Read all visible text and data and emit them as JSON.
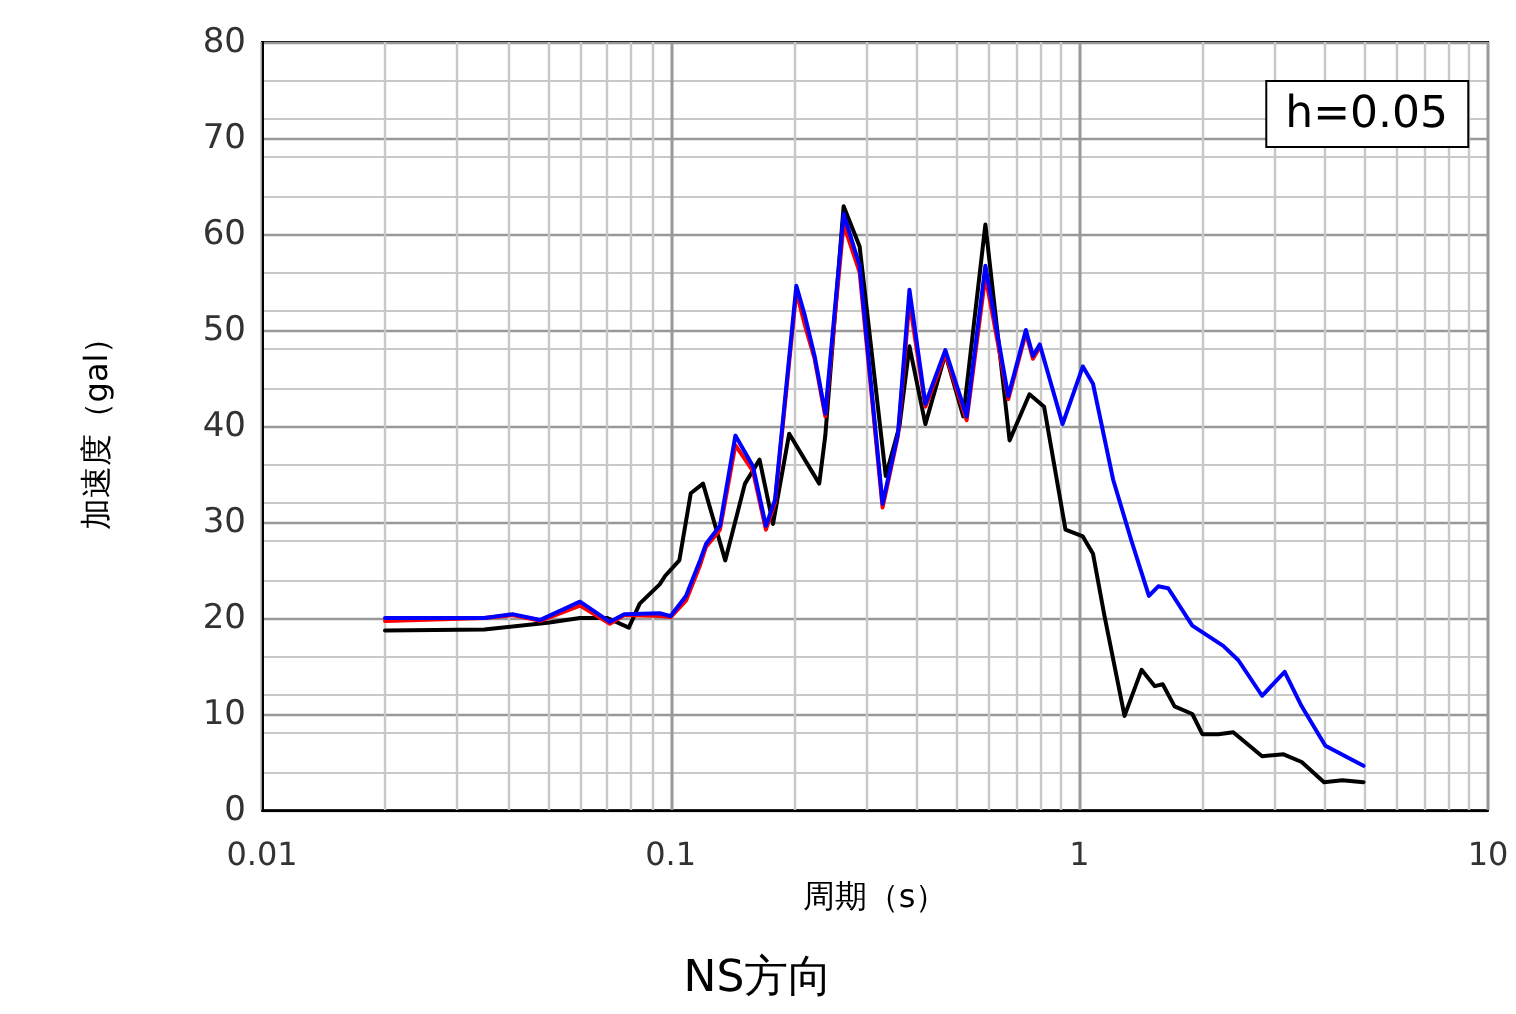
{
  "chart_data": {
    "type": "line",
    "title": "NS方向",
    "xlabel": "周期（s）",
    "ylabel": "加速度（gal）",
    "annotations": [
      "h=0.05"
    ],
    "log": "x",
    "xlim": [
      0.01,
      10
    ],
    "xticks": [
      0.01,
      0.1,
      1,
      10
    ],
    "ylim": [
      0,
      80
    ],
    "yticks": [
      0,
      10,
      20,
      30,
      40,
      50,
      60,
      70,
      80
    ],
    "grid": true,
    "marker": "none",
    "line_style": "solid",
    "series": [
      {
        "color": "#000000",
        "x": [
          0.02,
          0.035,
          0.05,
          0.06,
          0.07,
          0.079,
          0.084,
          0.094,
          0.097,
          0.105,
          0.112,
          0.12,
          0.136,
          0.152,
          0.165,
          0.178,
          0.195,
          0.231,
          0.239,
          0.265,
          0.29,
          0.336,
          0.363,
          0.384,
          0.42,
          0.47,
          0.52,
          0.589,
          0.675,
          0.755,
          0.82,
          0.925,
          1.02,
          1.08,
          1.15,
          1.29,
          1.42,
          1.53,
          1.6,
          1.71,
          1.89,
          2.0,
          2.19,
          2.38,
          2.8,
          3.16,
          3.5,
          3.97,
          4.4,
          4.96
        ],
        "values": [
          18.7,
          18.8,
          19.5,
          20,
          20,
          19,
          21.5,
          23.5,
          24.4,
          26,
          33,
          34,
          26,
          34,
          36.5,
          29.8,
          39.2,
          34,
          39,
          62.9,
          58.7,
          34.8,
          40,
          48.3,
          40.2,
          47.5,
          41,
          61,
          38.5,
          43.3,
          42,
          29.2,
          28.5,
          26.7,
          20.4,
          9.8,
          14.6,
          12.9,
          13.1,
          10.8,
          10,
          7.9,
          7.9,
          8.1,
          5.6,
          5.8,
          5,
          2.9,
          3.1,
          2.9
        ]
      },
      {
        "color": "#ff0000",
        "x": [
          0.02,
          0.035,
          0.041,
          0.048,
          0.06,
          0.071,
          0.077,
          0.094,
          0.1,
          0.109,
          0.118,
          0.122,
          0.132,
          0.144,
          0.159,
          0.171,
          0.18,
          0.203,
          0.213,
          0.225,
          0.239,
          0.265,
          0.29,
          0.33,
          0.36,
          0.384,
          0.42,
          0.47,
          0.53,
          0.589,
          0.67,
          0.74,
          0.77,
          0.8
        ],
        "values": [
          19.7,
          20,
          20.3,
          19.7,
          21.3,
          19.4,
          20.3,
          20.2,
          20.1,
          21.8,
          25.5,
          27.4,
          29.2,
          38,
          35.3,
          29.2,
          32,
          54,
          50.5,
          47,
          41,
          61,
          56,
          31.5,
          39,
          53,
          42,
          47.5,
          40.6,
          55.6,
          42.8,
          49.7,
          47,
          48.2
        ]
      },
      {
        "color": "#0000ff",
        "x": [
          0.02,
          0.035,
          0.041,
          0.048,
          0.06,
          0.071,
          0.077,
          0.094,
          0.1,
          0.109,
          0.118,
          0.122,
          0.132,
          0.144,
          0.159,
          0.171,
          0.18,
          0.203,
          0.213,
          0.225,
          0.239,
          0.265,
          0.29,
          0.33,
          0.36,
          0.384,
          0.42,
          0.47,
          0.53,
          0.589,
          0.67,
          0.74,
          0.77,
          0.8,
          0.91,
          1.02,
          1.08,
          1.21,
          1.34,
          1.48,
          1.56,
          1.65,
          1.89,
          2.25,
          2.45,
          2.8,
          3.18,
          3.5,
          4.0,
          4.96
        ],
        "values": [
          20,
          20,
          20.4,
          19.8,
          21.7,
          19.6,
          20.4,
          20.5,
          20.2,
          22.3,
          26,
          27.7,
          29.6,
          39,
          35.8,
          29.6,
          32.3,
          54.6,
          51.5,
          47.3,
          41.3,
          62.1,
          56.7,
          31.9,
          39.2,
          54.2,
          42.3,
          47.9,
          41,
          56.7,
          43.1,
          50,
          47.3,
          48.5,
          40.2,
          46.2,
          44.4,
          34.4,
          28.1,
          22.3,
          23.3,
          23.1,
          19.2,
          17.1,
          15.6,
          11.9,
          14.4,
          10.8,
          6.7,
          4.6
        ]
      }
    ]
  }
}
